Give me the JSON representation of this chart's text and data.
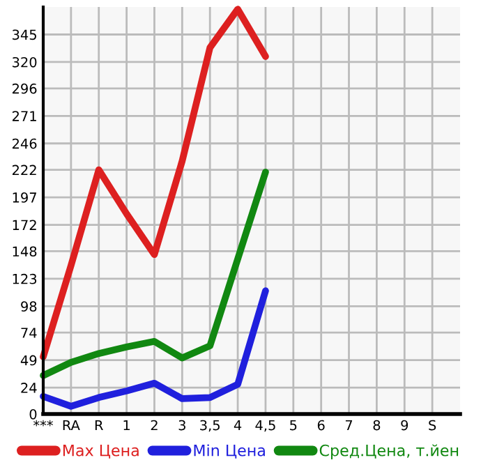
{
  "chart_data": {
    "type": "line",
    "categories": [
      "***",
      "RA",
      "R",
      "1",
      "2",
      "3",
      "3,5",
      "4",
      "4,5",
      "5",
      "6",
      "7",
      "8",
      "9",
      "S"
    ],
    "series": [
      {
        "name": "Max Цена",
        "color": "#dd2020",
        "values": [
          52,
          135,
          222,
          182,
          145,
          230,
          333,
          368,
          325,
          null,
          null,
          null,
          null,
          null,
          null
        ]
      },
      {
        "name": "Min Цена",
        "color": "#2020dd",
        "values": [
          16,
          7,
          15,
          21,
          28,
          14,
          15,
          27,
          112,
          null,
          null,
          null,
          null,
          null,
          null
        ]
      },
      {
        "name": "Сред.Цена, т.йен",
        "color": "#118811",
        "values": [
          35,
          47,
          55,
          61,
          66,
          51,
          62,
          141,
          220,
          null,
          null,
          null,
          null,
          null,
          null
        ]
      }
    ],
    "ylim": [
      0,
      370
    ],
    "yticks": [
      0,
      24,
      49,
      74,
      98,
      123,
      148,
      172,
      197,
      222,
      246,
      271,
      296,
      320,
      345
    ],
    "grid": true,
    "legend": "bottom",
    "marker": "none",
    "line_style": "solid"
  }
}
